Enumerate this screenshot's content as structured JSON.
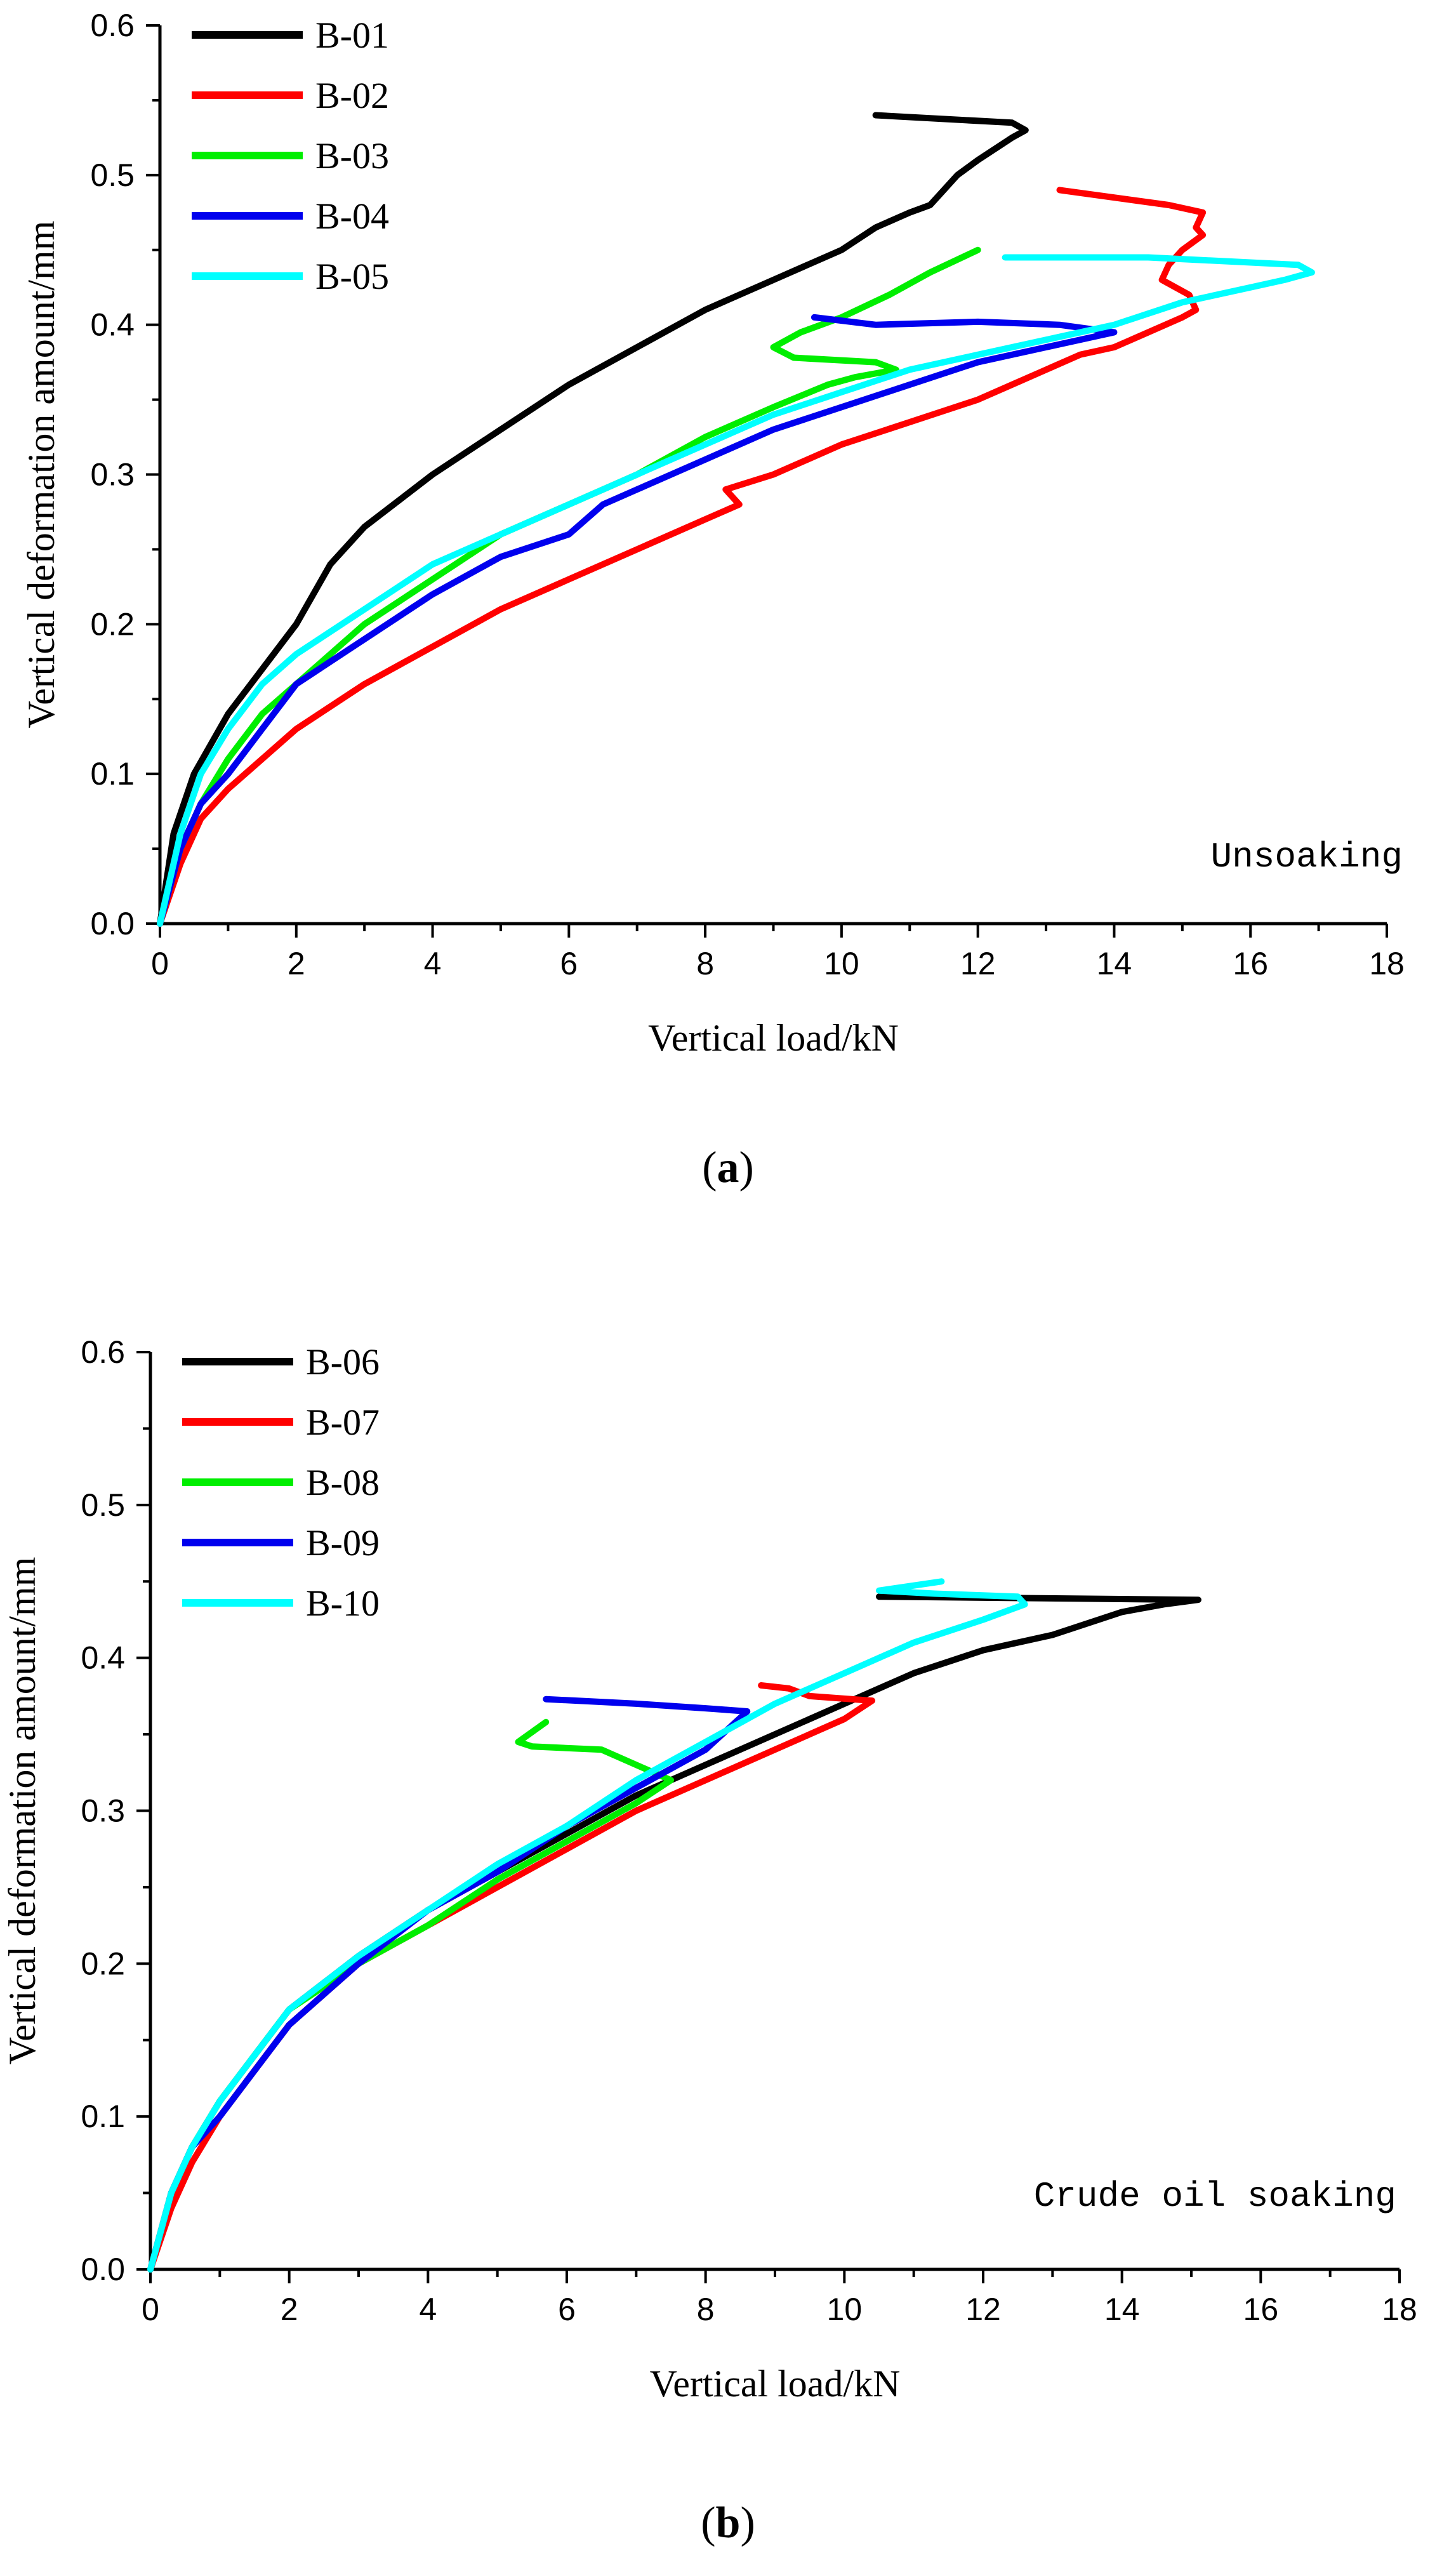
{
  "chart_data": [
    {
      "type": "line",
      "panel": "a",
      "caption_open": "(",
      "caption_letter": "a",
      "caption_close": ")",
      "xlabel": "Vertical load/kN",
      "ylabel": "Vertical deformation amount/mm",
      "annotation": "Unsoaking",
      "xlim": [
        0,
        18
      ],
      "ylim": [
        0,
        0.6
      ],
      "xticks": [
        0,
        2,
        4,
        6,
        8,
        10,
        12,
        14,
        16,
        18
      ],
      "xtick_labels": [
        "0",
        "2",
        "4",
        "6",
        "8",
        "10",
        "12",
        "14",
        "16",
        "18"
      ],
      "yticks": [
        0,
        0.1,
        0.2,
        0.3,
        0.4,
        0.5,
        0.6
      ],
      "ytick_labels": [
        "0.0",
        "0.1",
        "0.2",
        "0.3",
        "0.4",
        "0.5",
        "0.6"
      ],
      "legend_position": "top-left",
      "series": [
        {
          "name": "B-01",
          "color": "#000000",
          "x": [
            0,
            0.2,
            0.5,
            1,
            1.5,
            2,
            2.5,
            3,
            4,
            5,
            6,
            7,
            8,
            9,
            10,
            10.5,
            11,
            11.3,
            11.5,
            11.7,
            12,
            12.5,
            12.7,
            12.5,
            10.5
          ],
          "y": [
            0,
            0.06,
            0.1,
            0.14,
            0.17,
            0.2,
            0.24,
            0.265,
            0.3,
            0.33,
            0.36,
            0.385,
            0.41,
            0.43,
            0.45,
            0.465,
            0.475,
            0.48,
            0.49,
            0.5,
            0.51,
            0.525,
            0.53,
            0.535,
            0.54
          ]
        },
        {
          "name": "B-02",
          "color": "#ff0000",
          "x": [
            0,
            0.3,
            0.6,
            1,
            1.5,
            2,
            3,
            4,
            5,
            6,
            7,
            8,
            8.5,
            8.3,
            9,
            9.5,
            10,
            11,
            12,
            12.5,
            13,
            13.5,
            14,
            14.5,
            15,
            15.2,
            15.1,
            14.7,
            14.8,
            15,
            15.3,
            15.2,
            15.3,
            14.8,
            13.2
          ],
          "y": [
            0,
            0.04,
            0.07,
            0.09,
            0.11,
            0.13,
            0.16,
            0.185,
            0.21,
            0.23,
            0.25,
            0.27,
            0.28,
            0.29,
            0.3,
            0.31,
            0.32,
            0.335,
            0.35,
            0.36,
            0.37,
            0.38,
            0.385,
            0.395,
            0.405,
            0.41,
            0.42,
            0.43,
            0.44,
            0.45,
            0.46,
            0.465,
            0.475,
            0.48,
            0.49
          ]
        },
        {
          "name": "B-03",
          "color": "#00ee00",
          "x": [
            0,
            0.3,
            0.6,
            1,
            1.5,
            2,
            3,
            4,
            5,
            6,
            7,
            8,
            9,
            9.8,
            10.2,
            10.8,
            10.5,
            9.3,
            9,
            9.4,
            10,
            10.7,
            11.3,
            12
          ],
          "y": [
            0,
            0.05,
            0.08,
            0.11,
            0.14,
            0.16,
            0.2,
            0.23,
            0.26,
            0.28,
            0.3,
            0.325,
            0.345,
            0.36,
            0.365,
            0.37,
            0.375,
            0.378,
            0.385,
            0.395,
            0.405,
            0.42,
            0.435,
            0.45
          ]
        },
        {
          "name": "B-04",
          "color": "#0000ee",
          "x": [
            0,
            0.3,
            0.6,
            1,
            1.5,
            2,
            3,
            4,
            5,
            6,
            6.5,
            7,
            8,
            9,
            10,
            11,
            12,
            13,
            13.5,
            14,
            13.2,
            12,
            10.5,
            9.6
          ],
          "y": [
            0,
            0.05,
            0.08,
            0.1,
            0.13,
            0.16,
            0.19,
            0.22,
            0.245,
            0.26,
            0.28,
            0.29,
            0.31,
            0.33,
            0.345,
            0.36,
            0.375,
            0.385,
            0.39,
            0.395,
            0.4,
            0.402,
            0.4,
            0.405
          ]
        },
        {
          "name": "B-05",
          "color": "#00ffff",
          "x": [
            0,
            0.3,
            0.6,
            1,
            1.5,
            2,
            3,
            4,
            5,
            6,
            7,
            8,
            9,
            10,
            11,
            12,
            13,
            14,
            15,
            16,
            16.5,
            16.9,
            16.7,
            14.5,
            12.4
          ],
          "y": [
            0,
            0.06,
            0.1,
            0.13,
            0.16,
            0.18,
            0.21,
            0.24,
            0.26,
            0.28,
            0.3,
            0.32,
            0.34,
            0.355,
            0.37,
            0.38,
            0.39,
            0.4,
            0.415,
            0.425,
            0.43,
            0.435,
            0.44,
            0.445,
            0.445
          ]
        }
      ]
    },
    {
      "type": "line",
      "panel": "b",
      "caption_open": "(",
      "caption_letter": "b",
      "caption_close": ")",
      "xlabel": "Vertical load/kN",
      "ylabel": "Vertical deformation amount/mm",
      "annotation": "Crude oil soaking",
      "xlim": [
        0,
        18
      ],
      "ylim": [
        0,
        0.6
      ],
      "xticks": [
        0,
        2,
        4,
        6,
        8,
        10,
        12,
        14,
        16,
        18
      ],
      "xtick_labels": [
        "0",
        "2",
        "4",
        "6",
        "8",
        "10",
        "12",
        "14",
        "16",
        "18"
      ],
      "yticks": [
        0,
        0.1,
        0.2,
        0.3,
        0.4,
        0.5,
        0.6
      ],
      "ytick_labels": [
        "0.0",
        "0.1",
        "0.2",
        "0.3",
        "0.4",
        "0.5",
        "0.6"
      ],
      "legend_position": "top-left",
      "series": [
        {
          "name": "B-06",
          "color": "#000000",
          "x": [
            0,
            0.3,
            0.6,
            1,
            1.5,
            2,
            3,
            4,
            5,
            6,
            7,
            8,
            9,
            10,
            11,
            12,
            13,
            14,
            14.6,
            15.1,
            10.5
          ],
          "y": [
            0,
            0.05,
            0.08,
            0.11,
            0.14,
            0.17,
            0.205,
            0.235,
            0.26,
            0.285,
            0.31,
            0.33,
            0.35,
            0.37,
            0.39,
            0.405,
            0.415,
            0.43,
            0.435,
            0.438,
            0.44
          ]
        },
        {
          "name": "B-07",
          "color": "#ff0000",
          "x": [
            0,
            0.3,
            0.6,
            1,
            1.5,
            2,
            3,
            4,
            5,
            6,
            7,
            8,
            9,
            9.5,
            10,
            10.4,
            9.5,
            9.2,
            8.8
          ],
          "y": [
            0,
            0.04,
            0.07,
            0.1,
            0.13,
            0.16,
            0.2,
            0.225,
            0.25,
            0.275,
            0.3,
            0.32,
            0.34,
            0.35,
            0.36,
            0.372,
            0.375,
            0.38,
            0.382
          ]
        },
        {
          "name": "B-08",
          "color": "#00ee00",
          "x": [
            0,
            0.3,
            0.6,
            1,
            1.5,
            2,
            3,
            4,
            5,
            6,
            7,
            7.5,
            6.5,
            5.5,
            5.3,
            5.7
          ],
          "y": [
            0,
            0.05,
            0.08,
            0.11,
            0.14,
            0.17,
            0.2,
            0.225,
            0.255,
            0.28,
            0.305,
            0.32,
            0.34,
            0.342,
            0.345,
            0.358
          ]
        },
        {
          "name": "B-09",
          "color": "#0000ee",
          "x": [
            0,
            0.3,
            0.6,
            1,
            1.5,
            2,
            3,
            4,
            5,
            6,
            7,
            8,
            8.6,
            8,
            7,
            5.7
          ],
          "y": [
            0,
            0.05,
            0.08,
            0.1,
            0.13,
            0.16,
            0.2,
            0.235,
            0.26,
            0.29,
            0.315,
            0.34,
            0.365,
            0.367,
            0.37,
            0.373
          ]
        },
        {
          "name": "B-10",
          "color": "#00ffff",
          "x": [
            0,
            0.3,
            0.6,
            1,
            1.5,
            2,
            3,
            4,
            5,
            6,
            7,
            8,
            9,
            10,
            11,
            12,
            12.6,
            12.5,
            11.3,
            10.5,
            11.4
          ],
          "y": [
            0,
            0.05,
            0.08,
            0.11,
            0.14,
            0.17,
            0.205,
            0.235,
            0.265,
            0.29,
            0.32,
            0.345,
            0.37,
            0.39,
            0.41,
            0.425,
            0.435,
            0.44,
            0.442,
            0.444,
            0.45
          ]
        }
      ]
    }
  ]
}
